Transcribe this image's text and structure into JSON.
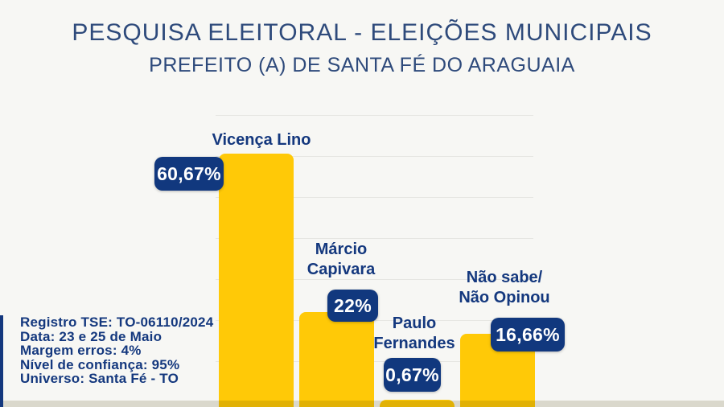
{
  "header": {
    "title": "PESQUISA ELEITORAL - ELEIÇÕES MUNICIPAIS",
    "subtitle": "PREFEITO (A) DE SANTA FÉ DO ARAGUAIA"
  },
  "info": {
    "lines": [
      "Registro TSE: TO-06110/2024",
      "Data: 23 e 25 de Maio",
      "Margem erros: 4%",
      "Nível de confiança: 95%",
      "Universo: Santa Fé - TO"
    ]
  },
  "colors": {
    "background": "#f7f7f4",
    "bar_yellow": "#ffc907",
    "badge_navy": "#11387e",
    "label_navy": "#14387e",
    "title_navy": "#2e4a7b",
    "gridline": "#e6e6e2",
    "badge_text": "#ffffff"
  },
  "chart_data": {
    "type": "bar",
    "title": "PESQUISA ELEITORAL - ELEIÇÕES MUNICIPAIS",
    "subtitle": "PREFEITO (A) DE SANTA FÉ DO ARAGUAIA",
    "categories": [
      "Vicença Lino",
      "Márcio Capivara",
      "Paulo Fernandes",
      "Não sabe/ Não Opinou"
    ],
    "category_display_lines": [
      [
        "Vicença Lino"
      ],
      [
        "Márcio",
        "Capivara"
      ],
      [
        "Paulo",
        "Fernandes"
      ],
      [
        "Não sabe/",
        "Não Opinou"
      ]
    ],
    "values": [
      60.67,
      22,
      0.67,
      16.66
    ],
    "value_labels": [
      "60,67%",
      "22%",
      "0,67%",
      "16,66%"
    ],
    "unit": "%",
    "xlabel": "",
    "ylabel": "",
    "ylim": [
      0,
      70
    ],
    "gridlines": [
      10,
      20,
      30,
      40,
      50,
      60,
      70
    ],
    "grid": true,
    "legend": false,
    "bar_color": "#ffc907",
    "value_badge_color": "#11387e"
  }
}
